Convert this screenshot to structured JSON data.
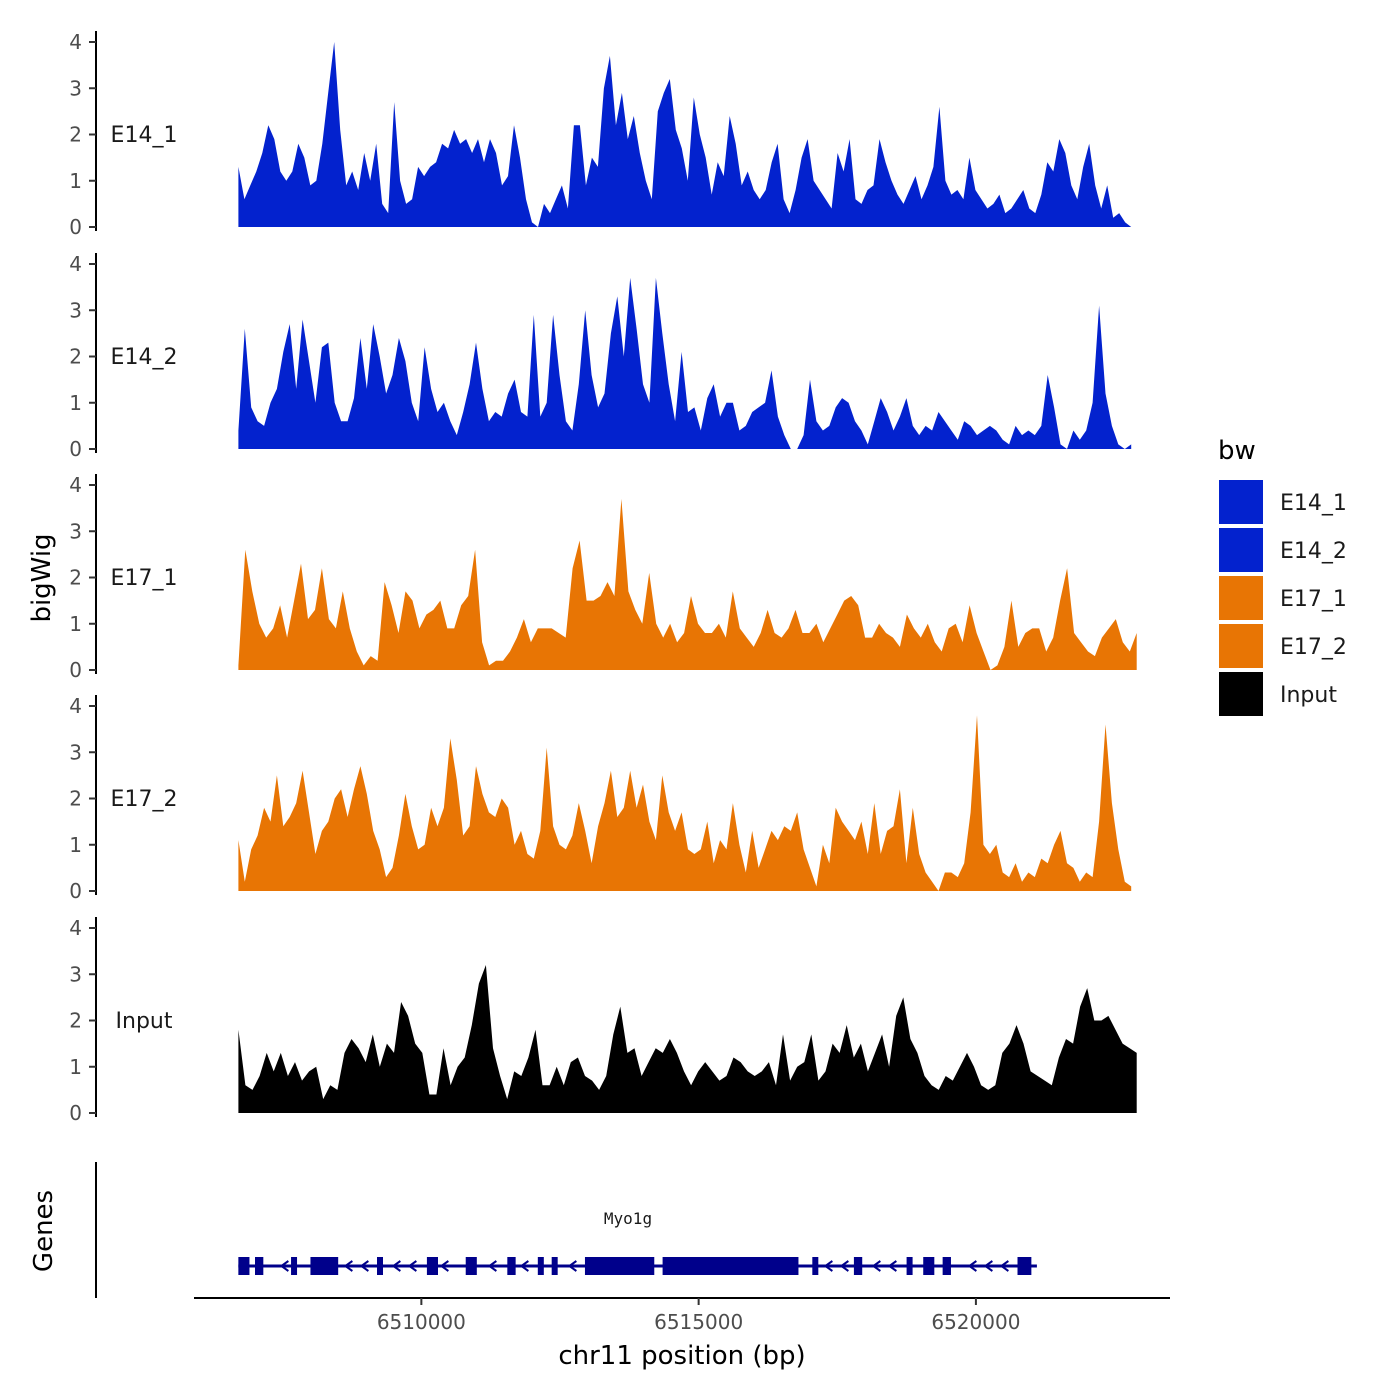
{
  "chart_data": {
    "type": "area",
    "x_axis": {
      "title": "chr11 position (bp)",
      "range": [
        6506700,
        6522900
      ],
      "xlim": [
        6505900,
        6523500
      ],
      "ticks": [
        6510000,
        6515000,
        6520000
      ],
      "tick_labels": [
        "6510000",
        "6515000",
        "6520000"
      ]
    },
    "y_axis": {
      "title": "bigWig",
      "ylim": [
        0,
        4
      ],
      "ticks": [
        0,
        1,
        2,
        3,
        4
      ],
      "tick_labels": [
        "0",
        "1",
        "2",
        "3",
        "4"
      ]
    },
    "legend": {
      "title": "bw",
      "position": "right",
      "entries": [
        {
          "label": "E14_1",
          "color": "#0322CE"
        },
        {
          "label": "E14_2",
          "color": "#0322CE"
        },
        {
          "label": "E17_1",
          "color": "#E87504"
        },
        {
          "label": "E17_2",
          "color": "#E87504"
        },
        {
          "label": "Input",
          "color": "#000000"
        }
      ]
    },
    "series": [
      {
        "name": "E14_1",
        "color": "#0322CE",
        "x_start": 6506700,
        "x_end": 6522800,
        "values": [
          1.3,
          0.6,
          0.9,
          1.2,
          1.6,
          2.2,
          1.9,
          1.2,
          1.0,
          1.2,
          1.8,
          1.5,
          0.9,
          1.0,
          1.8,
          2.9,
          4.0,
          2.1,
          0.9,
          1.2,
          0.8,
          1.6,
          1.0,
          1.8,
          0.5,
          0.3,
          2.7,
          1.0,
          0.5,
          0.6,
          1.3,
          1.1,
          1.3,
          1.4,
          1.8,
          1.7,
          2.1,
          1.8,
          1.9,
          1.6,
          1.9,
          1.4,
          1.9,
          1.6,
          0.9,
          1.1,
          2.2,
          1.5,
          0.6,
          0.1,
          0.0,
          0.5,
          0.3,
          0.6,
          0.9,
          0.4,
          2.2,
          2.2,
          0.9,
          1.5,
          1.3,
          3.0,
          3.7,
          2.2,
          2.9,
          1.9,
          2.4,
          1.6,
          1.0,
          0.6,
          2.5,
          2.9,
          3.2,
          2.1,
          1.7,
          1.0,
          2.8,
          2.0,
          1.5,
          0.7,
          1.4,
          1.1,
          2.4,
          1.8,
          0.9,
          1.2,
          0.8,
          0.6,
          0.8,
          1.4,
          1.8,
          0.6,
          0.3,
          0.8,
          1.5,
          1.9,
          1.0,
          0.8,
          0.6,
          0.4,
          1.6,
          1.2,
          1.9,
          0.6,
          0.5,
          0.8,
          0.9,
          1.9,
          1.4,
          1.0,
          0.7,
          0.5,
          0.8,
          1.1,
          0.6,
          0.9,
          1.3,
          2.6,
          1.0,
          0.7,
          0.8,
          0.6,
          1.5,
          0.8,
          0.6,
          0.4,
          0.5,
          0.7,
          0.3,
          0.4,
          0.6,
          0.8,
          0.4,
          0.3,
          0.7,
          1.4,
          1.2,
          1.9,
          1.6,
          0.9,
          0.6,
          1.3,
          1.8,
          0.9,
          0.4,
          0.9,
          0.2,
          0.3,
          0.1,
          0.0
        ]
      },
      {
        "name": "E14_2",
        "color": "#0322CE",
        "x_start": 6506700,
        "x_end": 6522800,
        "values": [
          0.4,
          2.6,
          0.9,
          0.6,
          0.5,
          1.0,
          1.3,
          2.1,
          2.7,
          1.3,
          2.8,
          1.9,
          1.0,
          2.2,
          2.3,
          1.0,
          0.6,
          0.6,
          1.1,
          2.4,
          1.3,
          2.7,
          2.0,
          1.2,
          1.6,
          2.4,
          1.9,
          1.0,
          0.6,
          2.2,
          1.3,
          0.8,
          1.0,
          0.6,
          0.3,
          0.8,
          1.4,
          2.3,
          1.3,
          0.6,
          0.8,
          0.7,
          1.2,
          1.5,
          0.8,
          0.7,
          2.9,
          0.7,
          1.0,
          2.9,
          1.6,
          0.6,
          0.4,
          1.4,
          3.0,
          1.6,
          0.9,
          1.2,
          2.5,
          3.3,
          2.0,
          3.7,
          2.6,
          1.4,
          1.0,
          3.7,
          2.5,
          1.4,
          0.6,
          2.1,
          0.8,
          0.9,
          0.4,
          1.1,
          1.4,
          0.7,
          1.0,
          1.0,
          0.4,
          0.5,
          0.8,
          0.9,
          1.0,
          1.7,
          0.7,
          0.3,
          0.0,
          0.0,
          0.3,
          1.5,
          0.6,
          0.4,
          0.5,
          0.9,
          1.1,
          1.0,
          0.6,
          0.4,
          0.1,
          0.6,
          1.1,
          0.8,
          0.4,
          0.7,
          1.1,
          0.5,
          0.3,
          0.5,
          0.4,
          0.8,
          0.6,
          0.4,
          0.2,
          0.6,
          0.5,
          0.3,
          0.4,
          0.5,
          0.4,
          0.2,
          0.1,
          0.5,
          0.3,
          0.4,
          0.3,
          0.5,
          1.6,
          0.9,
          0.1,
          0.0,
          0.4,
          0.2,
          0.4,
          1.0,
          3.1,
          1.2,
          0.5,
          0.1,
          0.0,
          0.1
        ]
      },
      {
        "name": "E17_1",
        "color": "#E87504",
        "x_start": 6506700,
        "x_end": 6522900,
        "values": [
          0.1,
          2.6,
          1.7,
          1.0,
          0.7,
          0.9,
          1.4,
          0.7,
          1.5,
          2.3,
          1.1,
          1.3,
          2.2,
          1.1,
          0.9,
          1.7,
          0.9,
          0.4,
          0.1,
          0.3,
          0.2,
          1.9,
          1.4,
          0.8,
          1.7,
          1.5,
          0.9,
          1.2,
          1.3,
          1.5,
          0.9,
          0.9,
          1.4,
          1.6,
          2.6,
          0.6,
          0.1,
          0.2,
          0.2,
          0.4,
          0.7,
          1.1,
          0.6,
          0.9,
          0.9,
          0.9,
          0.8,
          0.7,
          2.2,
          2.8,
          1.5,
          1.5,
          1.6,
          1.9,
          1.6,
          3.7,
          1.7,
          1.3,
          1.0,
          2.1,
          1.0,
          0.7,
          1.0,
          0.6,
          0.8,
          1.6,
          1.0,
          0.8,
          0.8,
          1.0,
          0.7,
          1.7,
          0.9,
          0.7,
          0.5,
          0.8,
          1.3,
          0.8,
          0.7,
          0.9,
          1.3,
          0.8,
          0.8,
          1.0,
          0.6,
          0.9,
          1.2,
          1.5,
          1.6,
          1.4,
          0.7,
          0.7,
          1.0,
          0.8,
          0.7,
          0.5,
          1.2,
          0.9,
          0.7,
          1.0,
          0.6,
          0.4,
          0.9,
          1.0,
          0.6,
          1.4,
          0.8,
          0.4,
          0.0,
          0.1,
          0.5,
          1.5,
          0.5,
          0.8,
          0.9,
          0.9,
          0.4,
          0.7,
          1.5,
          2.2,
          0.8,
          0.6,
          0.4,
          0.3,
          0.7,
          0.9,
          1.1,
          0.6,
          0.4,
          0.8
        ]
      },
      {
        "name": "E17_2",
        "color": "#E87504",
        "x_start": 6506700,
        "x_end": 6522800,
        "values": [
          1.1,
          0.2,
          0.9,
          1.2,
          1.8,
          1.5,
          2.5,
          1.4,
          1.6,
          1.9,
          2.6,
          1.7,
          0.8,
          1.3,
          1.5,
          2.0,
          2.2,
          1.6,
          2.2,
          2.7,
          2.1,
          1.3,
          0.9,
          0.3,
          0.5,
          1.2,
          2.1,
          1.4,
          0.9,
          1.0,
          1.8,
          1.4,
          1.8,
          3.3,
          2.4,
          1.2,
          1.4,
          2.7,
          2.1,
          1.7,
          1.6,
          2.0,
          1.8,
          1.0,
          1.3,
          0.8,
          0.7,
          1.3,
          3.1,
          1.4,
          1.0,
          0.9,
          1.2,
          1.9,
          1.3,
          0.6,
          1.4,
          1.9,
          2.6,
          1.6,
          1.8,
          2.6,
          1.8,
          2.3,
          1.5,
          1.1,
          2.5,
          1.7,
          1.3,
          1.7,
          0.9,
          0.8,
          0.9,
          1.5,
          0.6,
          1.1,
          0.9,
          1.9,
          1.0,
          0.4,
          1.3,
          0.5,
          0.9,
          1.3,
          1.1,
          1.4,
          1.3,
          1.7,
          0.9,
          0.5,
          0.1,
          1.0,
          0.6,
          1.8,
          1.5,
          1.3,
          1.1,
          1.5,
          0.8,
          1.9,
          0.8,
          1.3,
          1.4,
          2.2,
          0.6,
          1.8,
          0.8,
          0.4,
          0.2,
          0.0,
          0.4,
          0.4,
          0.3,
          0.6,
          1.7,
          3.8,
          1.0,
          0.8,
          1.0,
          0.4,
          0.3,
          0.6,
          0.2,
          0.4,
          0.3,
          0.7,
          0.6,
          1.0,
          1.3,
          0.6,
          0.5,
          0.2,
          0.4,
          0.3,
          1.5,
          3.6,
          1.9,
          0.9,
          0.2,
          0.1
        ]
      },
      {
        "name": "Input",
        "color": "#000000",
        "x_start": 6506700,
        "x_end": 6522900,
        "values": [
          1.8,
          0.6,
          0.5,
          0.8,
          1.3,
          0.9,
          1.3,
          0.8,
          1.1,
          0.7,
          0.9,
          1.0,
          0.3,
          0.6,
          0.5,
          1.3,
          1.6,
          1.4,
          1.1,
          1.7,
          1.0,
          1.5,
          1.3,
          2.4,
          2.1,
          1.5,
          1.3,
          0.4,
          0.4,
          1.4,
          0.6,
          1.0,
          1.2,
          1.9,
          2.8,
          3.2,
          1.4,
          0.8,
          0.3,
          0.9,
          0.8,
          1.2,
          1.8,
          0.6,
          0.6,
          1.0,
          0.6,
          1.1,
          1.2,
          0.8,
          0.7,
          0.5,
          0.8,
          1.7,
          2.3,
          1.3,
          1.4,
          0.8,
          1.1,
          1.4,
          1.3,
          1.6,
          1.3,
          0.9,
          0.6,
          0.9,
          1.1,
          0.9,
          0.7,
          0.8,
          1.2,
          1.1,
          0.9,
          0.8,
          0.9,
          1.1,
          0.6,
          1.7,
          0.7,
          1.0,
          1.1,
          1.7,
          0.7,
          0.9,
          1.5,
          1.3,
          1.9,
          1.2,
          1.5,
          0.9,
          1.3,
          1.7,
          1.0,
          2.1,
          2.5,
          1.6,
          1.3,
          0.8,
          0.6,
          0.5,
          0.8,
          0.7,
          1.0,
          1.3,
          1.0,
          0.6,
          0.5,
          0.6,
          1.3,
          1.5,
          1.9,
          1.5,
          0.9,
          0.8,
          0.7,
          0.6,
          1.2,
          1.6,
          1.5,
          2.3,
          2.7,
          2.0,
          2.0,
          2.1,
          1.8,
          1.5,
          1.4,
          1.3
        ]
      }
    ],
    "gene_track": {
      "axis_title": "Genes",
      "gene_name": "Myo1g",
      "strand": "-",
      "color": "#00008B",
      "start": 6506700,
      "end": 6521100,
      "exons": [
        [
          6506700,
          6506900
        ],
        [
          6507000,
          6507150
        ],
        [
          6507650,
          6507750
        ],
        [
          6508000,
          6508500
        ],
        [
          6509200,
          6509300
        ],
        [
          6510100,
          6510300
        ],
        [
          6510800,
          6511000
        ],
        [
          6511550,
          6511700
        ],
        [
          6512100,
          6512200
        ],
        [
          6512350,
          6512450
        ],
        [
          6512950,
          6514200
        ],
        [
          6514350,
          6516800
        ],
        [
          6517050,
          6517150
        ],
        [
          6517800,
          6517950
        ],
        [
          6518750,
          6518850
        ],
        [
          6519050,
          6519250
        ],
        [
          6519400,
          6519550
        ],
        [
          6520750,
          6521000
        ]
      ]
    }
  }
}
